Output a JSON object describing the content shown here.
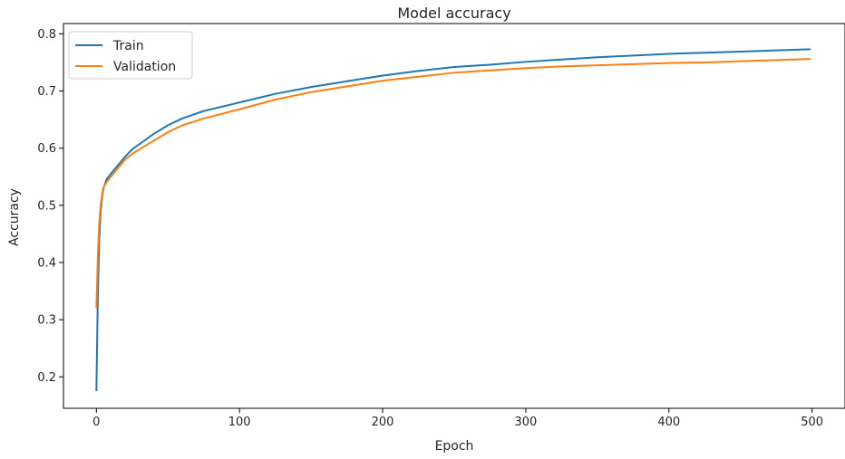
{
  "chart_data": {
    "type": "line",
    "title": "Model accuracy",
    "xlabel": "Epoch",
    "ylabel": "Accuracy",
    "xlim": [
      -23,
      523
    ],
    "ylim": [
      0.145,
      0.818
    ],
    "xticks": [
      0,
      100,
      200,
      300,
      400,
      500
    ],
    "yticks": [
      0.2,
      0.3,
      0.4,
      0.5,
      0.6,
      0.7,
      0.8
    ],
    "xtick_labels": [
      "0",
      "100",
      "200",
      "300",
      "400",
      "500"
    ],
    "ytick_labels": [
      "0.2",
      "0.3",
      "0.4",
      "0.5",
      "0.6",
      "0.7",
      "0.8"
    ],
    "grid": false,
    "legend_position": "top-left",
    "series": [
      {
        "name": "Train",
        "color": "#1f77b4",
        "x": [
          0,
          1,
          2,
          3,
          4,
          5,
          7,
          10,
          15,
          20,
          25,
          30,
          40,
          50,
          60,
          75,
          100,
          125,
          150,
          175,
          200,
          225,
          250,
          275,
          300,
          325,
          350,
          375,
          400,
          425,
          450,
          475,
          499
        ],
        "y": [
          0.175,
          0.34,
          0.44,
          0.49,
          0.515,
          0.53,
          0.545,
          0.555,
          0.57,
          0.585,
          0.598,
          0.607,
          0.625,
          0.64,
          0.652,
          0.665,
          0.68,
          0.695,
          0.707,
          0.717,
          0.727,
          0.735,
          0.742,
          0.746,
          0.751,
          0.755,
          0.759,
          0.762,
          0.765,
          0.767,
          0.769,
          0.771,
          0.773
        ]
      },
      {
        "name": "Validation",
        "color": "#ff7f0e",
        "x": [
          0,
          1,
          2,
          3,
          4,
          5,
          7,
          10,
          15,
          20,
          25,
          30,
          40,
          50,
          60,
          75,
          100,
          125,
          150,
          175,
          200,
          225,
          250,
          275,
          300,
          325,
          350,
          375,
          400,
          425,
          450,
          475,
          499
        ],
        "y": [
          0.32,
          0.41,
          0.47,
          0.5,
          0.52,
          0.532,
          0.54,
          0.55,
          0.565,
          0.58,
          0.59,
          0.598,
          0.613,
          0.628,
          0.64,
          0.652,
          0.668,
          0.685,
          0.698,
          0.708,
          0.718,
          0.725,
          0.732,
          0.736,
          0.74,
          0.743,
          0.745,
          0.747,
          0.749,
          0.75,
          0.752,
          0.754,
          0.756
        ]
      }
    ]
  }
}
